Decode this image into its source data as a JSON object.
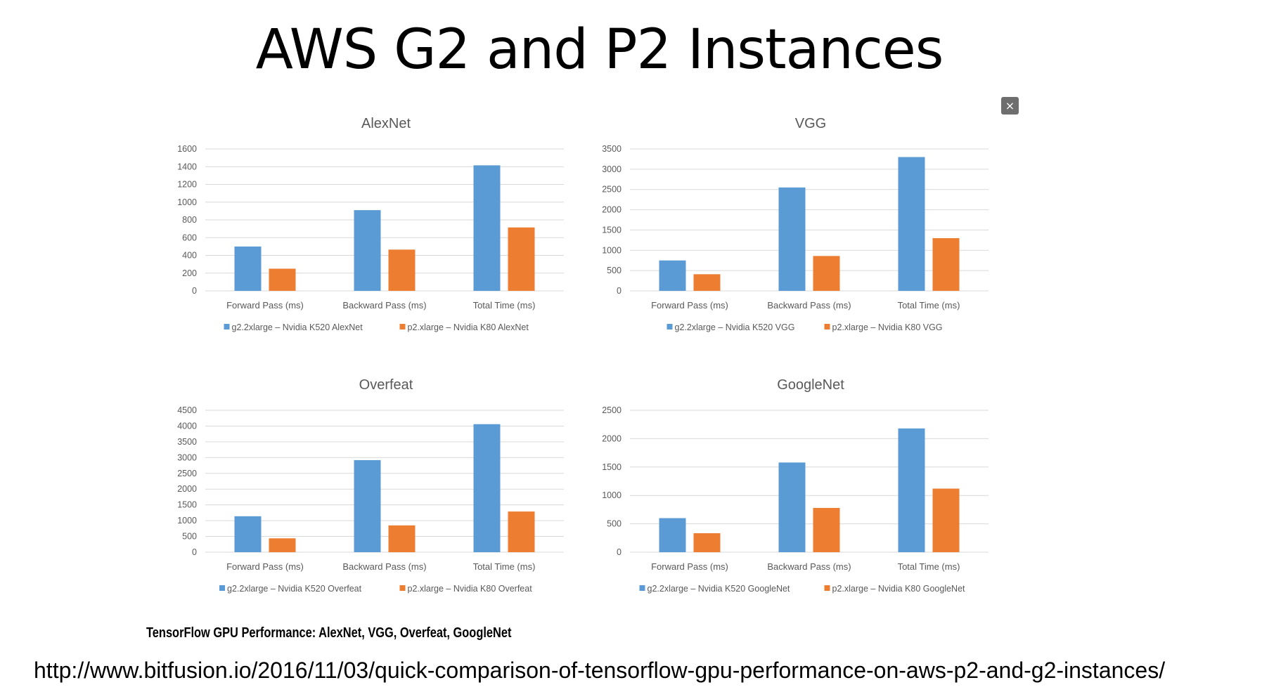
{
  "slide": {
    "title": "AWS G2 and P2 Instances",
    "close_icon_glyph": "×",
    "caption": "TensorFlow GPU Performance: AlexNet, VGG, Overfeat, GoogleNet",
    "source_url": "http://www.bitfusion.io/2016/11/03/quick-comparison-of-tensorflow-gpu-performance-on-aws-p2-and-g2-instances/"
  },
  "colors": {
    "g2": "#5b9bd5",
    "p2": "#ed7d31",
    "grid": "#d9d9d9",
    "axis_text": "#595959",
    "title_text": "#595959"
  },
  "chart_data": [
    {
      "type": "bar",
      "title": "AlexNet",
      "categories": [
        "Forward Pass (ms)",
        "Backward Pass (ms)",
        "Total Time (ms)"
      ],
      "ylim": [
        0,
        1600
      ],
      "yticks": [
        0,
        200,
        400,
        600,
        800,
        1000,
        1200,
        1400,
        1600
      ],
      "grid": true,
      "legend_position": "bottom",
      "series": [
        {
          "name": "g2.2xlarge – Nvidia K520 AlexNet",
          "color": "#5b9bd5",
          "values": [
            500,
            910,
            1415
          ]
        },
        {
          "name": "p2.xlarge – Nvidia K80 AlexNet",
          "color": "#ed7d31",
          "values": [
            250,
            465,
            715
          ]
        }
      ]
    },
    {
      "type": "bar",
      "title": "VGG",
      "categories": [
        "Forward Pass (ms)",
        "Backward Pass (ms)",
        "Total Time (ms)"
      ],
      "ylim": [
        0,
        3500
      ],
      "yticks": [
        0,
        500,
        1000,
        1500,
        2000,
        2500,
        3000,
        3500
      ],
      "grid": true,
      "legend_position": "bottom",
      "series": [
        {
          "name": "g2.2xlarge – Nvidia K520 VGG",
          "color": "#5b9bd5",
          "values": [
            750,
            2550,
            3300
          ]
        },
        {
          "name": "p2.xlarge – Nvidia K80 VGG",
          "color": "#ed7d31",
          "values": [
            410,
            860,
            1300
          ]
        }
      ]
    },
    {
      "type": "bar",
      "title": "Overfeat",
      "categories": [
        "Forward Pass (ms)",
        "Backward Pass (ms)",
        "Total Time (ms)"
      ],
      "ylim": [
        0,
        4500
      ],
      "yticks": [
        0,
        500,
        1000,
        1500,
        2000,
        2500,
        3000,
        3500,
        4000,
        4500
      ],
      "grid": true,
      "legend_position": "bottom",
      "series": [
        {
          "name": "g2.2xlarge – Nvidia K520 Overfeat",
          "color": "#5b9bd5",
          "values": [
            1140,
            2920,
            4060
          ]
        },
        {
          "name": "p2.xlarge – Nvidia K80 Overfeat",
          "color": "#ed7d31",
          "values": [
            440,
            850,
            1290
          ]
        }
      ]
    },
    {
      "type": "bar",
      "title": "GoogleNet",
      "categories": [
        "Forward Pass (ms)",
        "Backward Pass (ms)",
        "Total Time (ms)"
      ],
      "ylim": [
        0,
        2500
      ],
      "yticks": [
        0,
        500,
        1000,
        1500,
        2000,
        2500
      ],
      "grid": true,
      "legend_position": "bottom",
      "series": [
        {
          "name": "g2.2xlarge – Nvidia K520 GoogleNet",
          "color": "#5b9bd5",
          "values": [
            600,
            1580,
            2180
          ]
        },
        {
          "name": "p2.xlarge – Nvidia K80 GoogleNet",
          "color": "#ed7d31",
          "values": [
            335,
            780,
            1120
          ]
        }
      ]
    }
  ]
}
